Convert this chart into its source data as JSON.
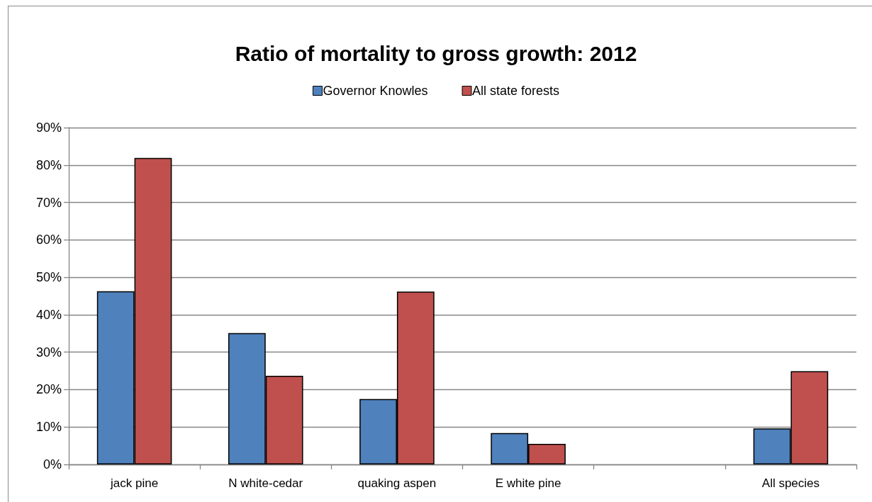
{
  "chart_data": {
    "type": "bar",
    "title": "Ratio of mortality to gross growth: 2012",
    "categories": [
      "jack pine",
      "N white-cedar",
      "quaking aspen",
      "E white pine",
      null,
      "All species"
    ],
    "series": [
      {
        "name": "Governor Knowles",
        "color": "#4f81bd",
        "values": [
          46.3,
          35.1,
          17.5,
          8.4,
          null,
          9.6
        ]
      },
      {
        "name": "All state forests",
        "color": "#c0504d",
        "values": [
          81.9,
          23.7,
          46.2,
          5.5,
          null,
          24.9
        ]
      }
    ],
    "ylim": [
      0,
      90
    ],
    "yticks": [
      {
        "value": 0,
        "label": "0%"
      },
      {
        "value": 10,
        "label": "10%"
      },
      {
        "value": 20,
        "label": "20%"
      },
      {
        "value": 30,
        "label": "30%"
      },
      {
        "value": 40,
        "label": "40%"
      },
      {
        "value": 50,
        "label": "50%"
      },
      {
        "value": 60,
        "label": "60%"
      },
      {
        "value": 70,
        "label": "70%"
      },
      {
        "value": 80,
        "label": "80%"
      },
      {
        "value": 90,
        "label": "90%"
      }
    ],
    "grid": "y",
    "legend": "top"
  }
}
